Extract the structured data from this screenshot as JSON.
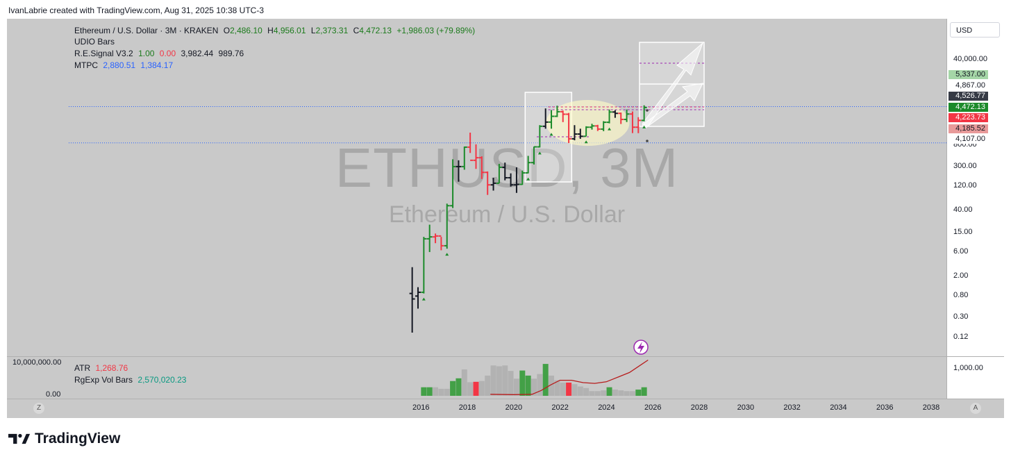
{
  "credit": "IvanLabrie created with TradingView.com, Aug 31, 2025 10:38 UTC-3",
  "brand": "TradingView",
  "legend": {
    "symbol": "Ethereum / U.S. Dollar · 3M · KRAKEN",
    "o_label": "O",
    "o": "2,486.10",
    "h_label": "H",
    "h": "4,956.01",
    "l_label": "L",
    "l": "2,373.31",
    "c_label": "C",
    "c": "4,472.13",
    "change": "+1,986.03 (+79.89%)",
    "udio": "UDIO Bars",
    "re_name": "R.E.Signal V3.2",
    "re_v1": "1.00",
    "re_v2": "0.00",
    "re_v3": "3,982.44",
    "re_v4": "989.76",
    "mtpc_name": "MTPC",
    "mtpc_v1": "2,880.51",
    "mtpc_v2": "1,384.17",
    "atr_name": "ATR",
    "atr_v": "1,268.76",
    "vol_name": "RgExp Vol Bars",
    "vol_v": "2,570,020.23"
  },
  "watermark": {
    "ticker": "ETHUSD, 3M",
    "name": "Ethereum / U.S. Dollar"
  },
  "currency_button": "USD",
  "zoom_left": "Z",
  "zoom_right": "A",
  "price_axis_ticks": [
    "40,000.00",
    "800.00",
    "300.00",
    "120.00",
    "40.00",
    "15.00",
    "6.00",
    "2.00",
    "0.80",
    "0.30",
    "0.12"
  ],
  "price_tags": [
    {
      "label": "5,337.00",
      "bg": "#a5d6a7",
      "fg": "#131722"
    },
    {
      "label": "4,867.00",
      "bg": "#ffffff",
      "fg": "#131722"
    },
    {
      "label": "4,526.77",
      "bg": "#363a45",
      "fg": "#ffffff"
    },
    {
      "label": "4,472.13",
      "bg": "#1b8a2a",
      "fg": "#ffffff"
    },
    {
      "label": "4,223.73",
      "bg": "#f23645",
      "fg": "#ffffff"
    },
    {
      "label": "4,185.52",
      "bg": "#e89a9a",
      "fg": "#131722"
    },
    {
      "label": "4,107.00",
      "bg": "#ffffff",
      "fg": "#131722"
    }
  ],
  "volume_axis_left": [
    "10,000,000.00",
    "0.00"
  ],
  "atr_axis_right": [
    "1,000.00"
  ],
  "time_ticks": [
    "2016",
    "2018",
    "2020",
    "2022",
    "2024",
    "2026",
    "2028",
    "2030",
    "2032",
    "2034",
    "2036",
    "2038"
  ],
  "colors": {
    "up": "#1b8a2a",
    "down": "#f23645",
    "neutral": "#131722",
    "plot_bg": "#c9c9c9"
  },
  "chart_data": {
    "type": "bar",
    "title": "Ethereum / U.S. Dollar · 3M · KRAKEN",
    "y_scale": "log",
    "ylim": [
      0.1,
      60000
    ],
    "x_unit": "year",
    "series": [
      {
        "t": 2015.63,
        "o": 0.9,
        "h": 3.0,
        "l": 0.15,
        "c": 0.7,
        "s": "n"
      },
      {
        "t": 2015.88,
        "o": 0.8,
        "h": 1.2,
        "l": 0.45,
        "c": 0.95,
        "s": "n"
      },
      {
        "t": 2016.13,
        "o": 0.95,
        "h": 12,
        "l": 0.9,
        "c": 11,
        "s": "u"
      },
      {
        "t": 2016.38,
        "o": 11,
        "h": 21,
        "l": 6,
        "c": 12,
        "s": "u"
      },
      {
        "t": 2016.63,
        "o": 12,
        "h": 14,
        "l": 9,
        "c": 12.5,
        "s": "d"
      },
      {
        "t": 2016.88,
        "o": 12.5,
        "h": 12,
        "l": 6.5,
        "c": 8,
        "s": "d"
      },
      {
        "t": 2017.13,
        "o": 8,
        "h": 55,
        "l": 7,
        "c": 50,
        "s": "u"
      },
      {
        "t": 2017.38,
        "o": 50,
        "h": 420,
        "l": 45,
        "c": 300,
        "s": "u"
      },
      {
        "t": 2017.63,
        "o": 300,
        "h": 400,
        "l": 150,
        "c": 300,
        "s": "n"
      },
      {
        "t": 2017.88,
        "o": 300,
        "h": 750,
        "l": 260,
        "c": 730,
        "s": "u"
      },
      {
        "t": 2018.13,
        "o": 730,
        "h": 1420,
        "l": 560,
        "c": 400,
        "s": "d"
      },
      {
        "t": 2018.38,
        "o": 400,
        "h": 830,
        "l": 270,
        "c": 450,
        "s": "d"
      },
      {
        "t": 2018.63,
        "o": 450,
        "h": 480,
        "l": 170,
        "c": 230,
        "s": "d"
      },
      {
        "t": 2018.88,
        "o": 230,
        "h": 240,
        "l": 82,
        "c": 130,
        "s": "d"
      },
      {
        "t": 2019.13,
        "o": 130,
        "h": 180,
        "l": 100,
        "c": 140,
        "s": "n"
      },
      {
        "t": 2019.38,
        "o": 140,
        "h": 340,
        "l": 140,
        "c": 290,
        "s": "u"
      },
      {
        "t": 2019.63,
        "o": 290,
        "h": 360,
        "l": 160,
        "c": 180,
        "s": "n"
      },
      {
        "t": 2019.88,
        "o": 180,
        "h": 220,
        "l": 120,
        "c": 130,
        "s": "n"
      },
      {
        "t": 2020.13,
        "o": 130,
        "h": 290,
        "l": 90,
        "c": 133,
        "s": "n"
      },
      {
        "t": 2020.38,
        "o": 133,
        "h": 250,
        "l": 130,
        "c": 225,
        "s": "u"
      },
      {
        "t": 2020.63,
        "o": 225,
        "h": 490,
        "l": 220,
        "c": 360,
        "s": "u"
      },
      {
        "t": 2020.88,
        "o": 360,
        "h": 750,
        "l": 330,
        "c": 740,
        "s": "u"
      },
      {
        "t": 2021.13,
        "o": 740,
        "h": 2000,
        "l": 720,
        "c": 1900,
        "s": "u"
      },
      {
        "t": 2021.38,
        "o": 1900,
        "h": 4300,
        "l": 1700,
        "c": 2300,
        "s": "n"
      },
      {
        "t": 2021.63,
        "o": 2300,
        "h": 4000,
        "l": 1700,
        "c": 3000,
        "s": "u"
      },
      {
        "t": 2021.88,
        "o": 3000,
        "h": 4870,
        "l": 2900,
        "c": 3700,
        "s": "u"
      },
      {
        "t": 2022.13,
        "o": 3700,
        "h": 3900,
        "l": 2300,
        "c": 3300,
        "s": "d"
      },
      {
        "t": 2022.38,
        "o": 3300,
        "h": 3500,
        "l": 880,
        "c": 1070,
        "s": "d"
      },
      {
        "t": 2022.63,
        "o": 1070,
        "h": 2000,
        "l": 1000,
        "c": 1330,
        "s": "n"
      },
      {
        "t": 2022.88,
        "o": 1330,
        "h": 1700,
        "l": 1070,
        "c": 1200,
        "s": "n"
      },
      {
        "t": 2023.13,
        "o": 1200,
        "h": 1900,
        "l": 1200,
        "c": 1820,
        "s": "u"
      },
      {
        "t": 2023.38,
        "o": 1820,
        "h": 2130,
        "l": 1630,
        "c": 1930,
        "s": "u"
      },
      {
        "t": 2023.63,
        "o": 1930,
        "h": 2030,
        "l": 1530,
        "c": 1670,
        "s": "d"
      },
      {
        "t": 2023.88,
        "o": 1670,
        "h": 2400,
        "l": 1520,
        "c": 2280,
        "s": "u"
      },
      {
        "t": 2024.13,
        "o": 2280,
        "h": 4090,
        "l": 2170,
        "c": 3650,
        "s": "u"
      },
      {
        "t": 2024.38,
        "o": 3650,
        "h": 3970,
        "l": 2800,
        "c": 3430,
        "s": "n"
      },
      {
        "t": 2024.63,
        "o": 3430,
        "h": 3560,
        "l": 2110,
        "c": 2600,
        "s": "d"
      },
      {
        "t": 2024.88,
        "o": 2600,
        "h": 4100,
        "l": 2310,
        "c": 3330,
        "s": "u"
      },
      {
        "t": 2025.13,
        "o": 3330,
        "h": 3740,
        "l": 1390,
        "c": 1820,
        "s": "d"
      },
      {
        "t": 2025.38,
        "o": 1820,
        "h": 2880,
        "l": 1385,
        "c": 2486,
        "s": "d"
      },
      {
        "t": 2025.63,
        "o": 2486.1,
        "h": 4956.01,
        "l": 2373.31,
        "c": 4472.13,
        "s": "u"
      }
    ],
    "volume": [
      {
        "t": 2016.13,
        "v": 0.22,
        "s": "u"
      },
      {
        "t": 2016.38,
        "v": 0.22,
        "s": "u"
      },
      {
        "t": 2016.63,
        "v": 0.22,
        "s": "g"
      },
      {
        "t": 2016.88,
        "v": 0.18,
        "s": "g"
      },
      {
        "t": 2017.13,
        "v": 0.18,
        "s": "g"
      },
      {
        "t": 2017.38,
        "v": 0.38,
        "s": "u"
      },
      {
        "t": 2017.63,
        "v": 0.45,
        "s": "u"
      },
      {
        "t": 2017.88,
        "v": 0.68,
        "s": "g"
      },
      {
        "t": 2018.13,
        "v": 0.35,
        "s": "g"
      },
      {
        "t": 2018.38,
        "v": 0.36,
        "s": "d"
      },
      {
        "t": 2018.63,
        "v": 0.38,
        "s": "g"
      },
      {
        "t": 2018.88,
        "v": 0.52,
        "s": "g"
      },
      {
        "t": 2019.13,
        "v": 0.78,
        "s": "g"
      },
      {
        "t": 2019.38,
        "v": 0.76,
        "s": "g"
      },
      {
        "t": 2019.63,
        "v": 0.78,
        "s": "g"
      },
      {
        "t": 2019.88,
        "v": 0.64,
        "s": "g"
      },
      {
        "t": 2020.13,
        "v": 0.44,
        "s": "g"
      },
      {
        "t": 2020.38,
        "v": 0.65,
        "s": "u"
      },
      {
        "t": 2020.63,
        "v": 0.52,
        "s": "u"
      },
      {
        "t": 2020.88,
        "v": 0.44,
        "s": "g"
      },
      {
        "t": 2021.13,
        "v": 0.56,
        "s": "g"
      },
      {
        "t": 2021.38,
        "v": 0.82,
        "s": "u"
      },
      {
        "t": 2021.63,
        "v": 0.52,
        "s": "g"
      },
      {
        "t": 2021.88,
        "v": 0.4,
        "s": "g"
      },
      {
        "t": 2022.13,
        "v": 0.34,
        "s": "g"
      },
      {
        "t": 2022.38,
        "v": 0.34,
        "s": "d"
      },
      {
        "t": 2022.63,
        "v": 0.3,
        "s": "g"
      },
      {
        "t": 2022.88,
        "v": 0.24,
        "s": "g"
      },
      {
        "t": 2023.13,
        "v": 0.2,
        "s": "g"
      },
      {
        "t": 2023.38,
        "v": 0.12,
        "s": "g"
      },
      {
        "t": 2023.63,
        "v": 0.12,
        "s": "g"
      },
      {
        "t": 2023.88,
        "v": 0.14,
        "s": "g"
      },
      {
        "t": 2024.13,
        "v": 0.22,
        "s": "u"
      },
      {
        "t": 2024.38,
        "v": 0.16,
        "s": "g"
      },
      {
        "t": 2024.63,
        "v": 0.14,
        "s": "g"
      },
      {
        "t": 2024.88,
        "v": 0.12,
        "s": "g"
      },
      {
        "t": 2025.13,
        "v": 0.12,
        "s": "g"
      },
      {
        "t": 2025.38,
        "v": 0.16,
        "s": "u"
      },
      {
        "t": 2025.63,
        "v": 0.22,
        "s": "u"
      }
    ],
    "atr_line": [
      {
        "t": 2019.0,
        "v": 0.04
      },
      {
        "t": 2020.0,
        "v": 0.03
      },
      {
        "t": 2020.8,
        "v": 0.04
      },
      {
        "t": 2021.2,
        "v": 0.14
      },
      {
        "t": 2021.6,
        "v": 0.28
      },
      {
        "t": 2022.0,
        "v": 0.4
      },
      {
        "t": 2022.5,
        "v": 0.4
      },
      {
        "t": 2023.0,
        "v": 0.34
      },
      {
        "t": 2023.5,
        "v": 0.32
      },
      {
        "t": 2024.0,
        "v": 0.36
      },
      {
        "t": 2024.5,
        "v": 0.48
      },
      {
        "t": 2025.0,
        "v": 0.6
      },
      {
        "t": 2025.5,
        "v": 0.8
      },
      {
        "t": 2025.8,
        "v": 0.92
      }
    ]
  }
}
